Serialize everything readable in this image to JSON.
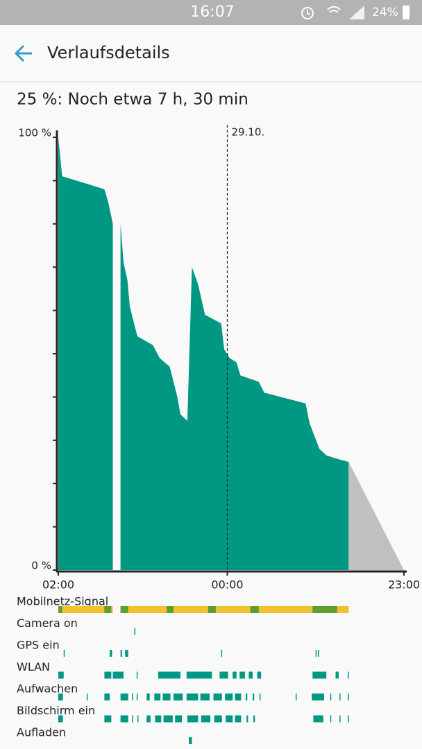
{
  "status_bar": {
    "time": "16:07",
    "battery": "24%"
  },
  "header": {
    "title": "Verlaufsdetails"
  },
  "summary": "25 %: Noch etwa 7 h, 30 min",
  "chart_data": {
    "type": "area",
    "xlim": [
      0,
      45
    ],
    "ylim": [
      0,
      100
    ],
    "xticks": [
      {
        "value": 0,
        "label": "02:00"
      },
      {
        "value": 22,
        "label": "00:00"
      },
      {
        "value": 45,
        "label": "23:00"
      }
    ],
    "yticks": [
      {
        "value": 0,
        "label": "0 %"
      },
      {
        "value": 100,
        "label": "100 %"
      }
    ],
    "minor_yticks": [
      10,
      20,
      30,
      40,
      50,
      60,
      70,
      80,
      90
    ],
    "date_marker": {
      "x": 22,
      "label": "29.10."
    },
    "series": [
      {
        "color": "#009882",
        "x": [
          0,
          0.5,
          4.2,
          6.0,
          6.5,
          7.1,
          null,
          8.1,
          8.5,
          9.0,
          9.3,
          10.0,
          10.3,
          12.3,
          13.2,
          14.5,
          15.5,
          15.9,
          16.8,
          17.4,
          18.2,
          19.1,
          21.2,
          21.6,
          22.3,
          23.2,
          23.7,
          26.1,
          26.8,
          32.2,
          32.7,
          34.0,
          34.9,
          36.5,
          37.8
        ],
        "values": [
          100,
          91,
          89,
          88,
          85,
          80,
          null,
          80,
          71,
          67,
          61,
          56,
          54,
          52,
          49,
          47,
          40,
          36,
          34.5,
          70,
          66,
          59,
          57,
          51,
          49,
          48,
          45,
          43.5,
          41,
          38.5,
          34,
          28,
          26.5,
          25.6,
          25
        ]
      },
      {
        "color": "#c0c0c0",
        "x": [
          37.8,
          45
        ],
        "values": [
          25,
          0
        ]
      }
    ],
    "events": [
      {
        "name": "Mobilnetz-Signal",
        "color": "#f2c12e",
        "segments": [
          [
            0,
            7.1
          ],
          [
            8.1,
            37.8
          ]
        ],
        "color2": "#5e9e30",
        "segments2": [
          [
            0,
            0.5
          ],
          [
            6,
            6.9
          ],
          [
            8.1,
            9.1
          ],
          [
            14.1,
            15
          ],
          [
            19.5,
            20.5
          ],
          [
            25,
            26.1
          ],
          [
            33.1,
            36.3
          ]
        ]
      },
      {
        "name": "Camera on",
        "color": "#009882",
        "segments": [
          [
            9.9,
            10.0
          ]
        ]
      },
      {
        "name": "GPS ein",
        "color": "#009882",
        "segments": [
          [
            0.7,
            0.8
          ],
          [
            6.7,
            7.0
          ],
          [
            8.1,
            8.3
          ],
          [
            8.7,
            9.1
          ],
          [
            21.2,
            21.3
          ],
          [
            33.5,
            33.6
          ],
          [
            33.8,
            33.9
          ]
        ]
      },
      {
        "name": "WLAN",
        "color": "#009882",
        "segments": [
          [
            0,
            0.7
          ],
          [
            6,
            6.9
          ],
          [
            7.1,
            8.5
          ],
          [
            10.2,
            10.3
          ],
          [
            13,
            15.9
          ],
          [
            16.7,
            20
          ],
          [
            21,
            22.1
          ],
          [
            22.7,
            23.2
          ],
          [
            23.6,
            24.3
          ],
          [
            24.8,
            25.3
          ],
          [
            25.9,
            26.4
          ],
          [
            33.1,
            34.9
          ],
          [
            36.1,
            36.5
          ],
          [
            37.7,
            37.8
          ]
        ]
      },
      {
        "name": "Aufwachen",
        "color": "#009882",
        "segments": [
          [
            0,
            0.6
          ],
          [
            3.7,
            3.8
          ],
          [
            6,
            6.7
          ],
          [
            8.1,
            9.1
          ],
          [
            9.6,
            9.7
          ],
          [
            10.2,
            10.3
          ],
          [
            11.5,
            11.9
          ],
          [
            12.5,
            13.3
          ],
          [
            13.6,
            14.6
          ],
          [
            15,
            16.2
          ],
          [
            16.7,
            18.2
          ],
          [
            18.5,
            19.7
          ],
          [
            20.2,
            21.3
          ],
          [
            21.7,
            22.7
          ],
          [
            23,
            23.8
          ],
          [
            24.4,
            24.6
          ],
          [
            25.3,
            25.5
          ],
          [
            26.2,
            26.3
          ],
          [
            30.9,
            31
          ],
          [
            33,
            34.6
          ],
          [
            35.4,
            35.5
          ],
          [
            36.6,
            36.7
          ],
          [
            37.7,
            37.8
          ]
        ]
      },
      {
        "name": "Bildschirm ein",
        "color": "#009882",
        "segments": [
          [
            0,
            0.6
          ],
          [
            6,
            6.9
          ],
          [
            8.1,
            9.1
          ],
          [
            9.6,
            9.7
          ],
          [
            10.3,
            10.4
          ],
          [
            11.5,
            12
          ],
          [
            12.6,
            13.4
          ],
          [
            13.7,
            14.9
          ],
          [
            15.2,
            16.1
          ],
          [
            16.8,
            18.2
          ],
          [
            18.6,
            19.8
          ],
          [
            20.3,
            21.3
          ],
          [
            21.8,
            22.7
          ],
          [
            23,
            23.8
          ],
          [
            24.5,
            24.7
          ],
          [
            25.4,
            25.6
          ],
          [
            33.2,
            34.5
          ],
          [
            35.4,
            35.5
          ],
          [
            36.6,
            36.7
          ],
          [
            37.7,
            37.8
          ]
        ]
      },
      {
        "name": "Aufladen",
        "color": "#009882",
        "segments": [
          [
            17,
            17.4
          ]
        ]
      }
    ]
  }
}
